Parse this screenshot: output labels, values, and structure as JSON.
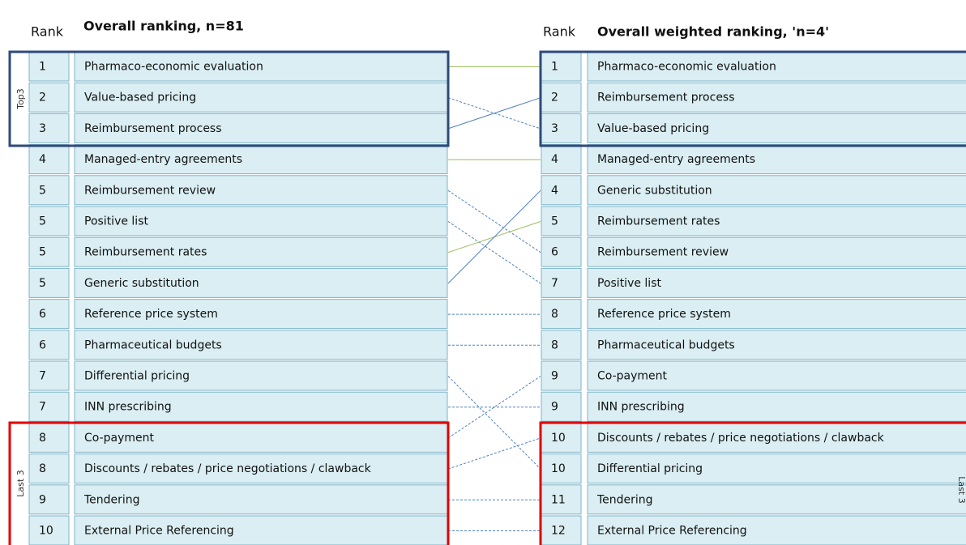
{
  "left": {
    "rank_header": "Rank",
    "title": "Overall ranking, n=81",
    "top_label": "Top3",
    "bottom_label": "Last 3",
    "rows": [
      [
        "1",
        "Pharmaco-economic evaluation"
      ],
      [
        "2",
        "Value-based pricing"
      ],
      [
        "3",
        "Reimbursement process"
      ],
      [
        "4",
        "Managed-entry agreements"
      ],
      [
        "5",
        "Reimbursement review"
      ],
      [
        "5",
        "Positive list"
      ],
      [
        "5",
        "Reimbursement rates"
      ],
      [
        "5",
        "Generic substitution"
      ],
      [
        "6",
        "Reference price system"
      ],
      [
        "6",
        "Pharmaceutical budgets"
      ],
      [
        "7",
        "Differential pricing"
      ],
      [
        "7",
        "INN prescribing"
      ],
      [
        "8",
        "Co-payment"
      ],
      [
        "8",
        "Discounts / rebates / price negotiations / clawback"
      ],
      [
        "9",
        "Tendering"
      ],
      [
        "10",
        "External Price Referencing"
      ]
    ]
  },
  "right": {
    "rank_header": "Rank",
    "title": "Overall weighted ranking, 'n=4'",
    "bottom_label": "Last 3",
    "rows": [
      [
        "1",
        "Pharmaco-economic evaluation"
      ],
      [
        "2",
        "Reimbursement process"
      ],
      [
        "3",
        "Value-based pricing"
      ],
      [
        "4",
        "Managed-entry agreements"
      ],
      [
        "4",
        "Generic substitution"
      ],
      [
        "5",
        "Reimbursement rates"
      ],
      [
        "6",
        "Reimbursement review"
      ],
      [
        "7",
        "Positive list"
      ],
      [
        "8",
        "Reference price system"
      ],
      [
        "8",
        "Pharmaceutical budgets"
      ],
      [
        "9",
        "Co-payment"
      ],
      [
        "9",
        "INN prescribing"
      ],
      [
        "10",
        "Discounts / rebates / price negotiations / clawback"
      ],
      [
        "10",
        "Differential pricing"
      ],
      [
        "11",
        "Tendering"
      ],
      [
        "12",
        "External Price Referencing"
      ]
    ]
  }
}
